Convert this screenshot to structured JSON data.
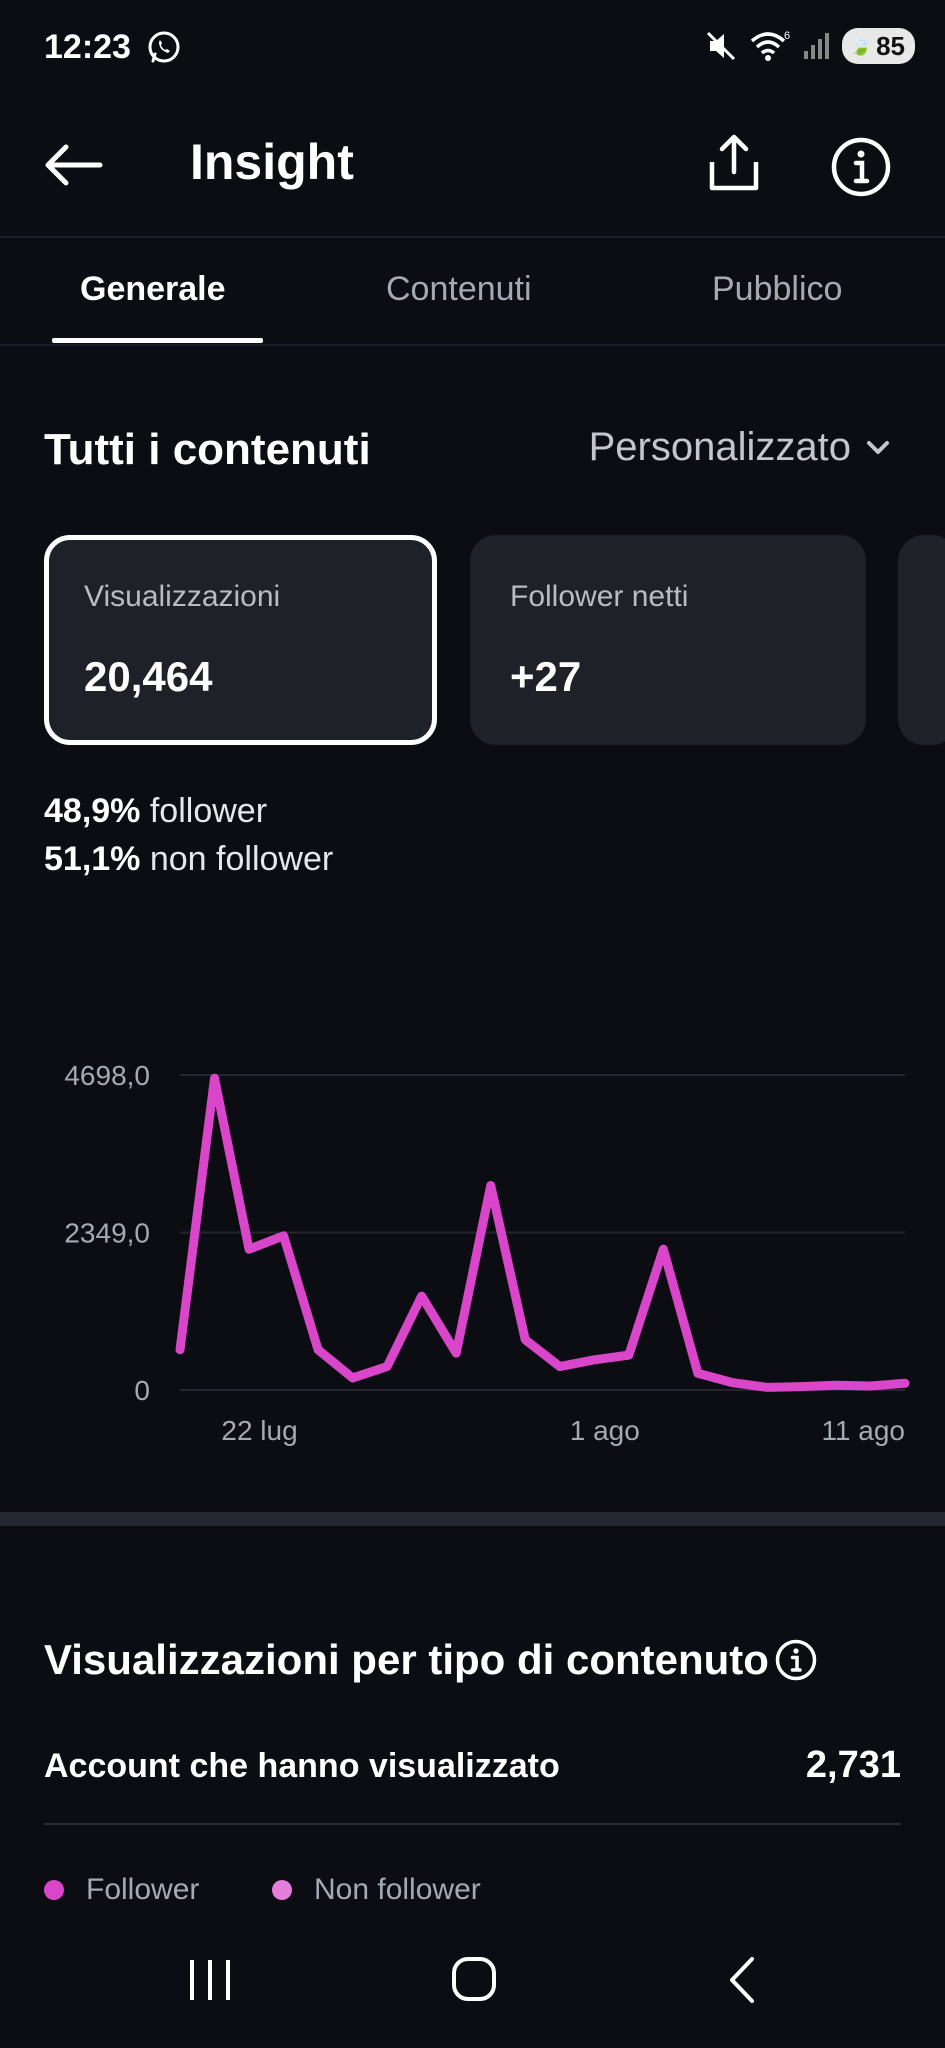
{
  "status_bar": {
    "time": "12:23",
    "battery": "85",
    "icons": [
      "whatsapp-icon",
      "mute-icon",
      "wifi-icon",
      "signal-icon",
      "battery-icon"
    ]
  },
  "header": {
    "title": "Insight",
    "icons": [
      "back-arrow-icon",
      "share-icon",
      "info-icon"
    ]
  },
  "tabs": [
    {
      "label": "Generale",
      "active": true
    },
    {
      "label": "Contenuti",
      "active": false
    },
    {
      "label": "Pubblico",
      "active": false
    }
  ],
  "section": {
    "title": "Tutti i contenuti",
    "range_label": "Personalizzato"
  },
  "cards": [
    {
      "label": "Visualizzazioni",
      "value": "20,464",
      "selected": true
    },
    {
      "label": "Follower netti",
      "value": "+27",
      "selected": false
    }
  ],
  "split": {
    "followers_pct": "48,9%",
    "followers_label": "follower",
    "non_followers_pct": "51,1%",
    "non_followers_label": "non follower"
  },
  "chart_data": {
    "type": "line",
    "color": "#d946c9",
    "y_ticks": [
      "4698,0",
      "2349,0",
      "0"
    ],
    "ylim": [
      0,
      4698
    ],
    "x_tick_labels": [
      "22 lug",
      "1 ago",
      "11 ago"
    ],
    "x_tick_dates": [
      "2024-07-22",
      "2024-08-01",
      "2024-08-11"
    ],
    "x": [
      "2024-07-21",
      "2024-07-22",
      "2024-07-23",
      "2024-07-24",
      "2024-07-25",
      "2024-07-26",
      "2024-07-27",
      "2024-07-28",
      "2024-07-29",
      "2024-07-30",
      "2024-07-31",
      "2024-08-01",
      "2024-08-02",
      "2024-08-03",
      "2024-08-04",
      "2024-08-05",
      "2024-08-06",
      "2024-08-07",
      "2024-08-08",
      "2024-08-09",
      "2024-08-10",
      "2024-08-11"
    ],
    "series": [
      {
        "values": [
          600,
          4650,
          2100,
          2300,
          600,
          180,
          350,
          1400,
          550,
          3050,
          750,
          350,
          450,
          520,
          2100,
          250,
          110,
          40,
          50,
          70,
          60,
          100
        ]
      }
    ],
    "grid": true
  },
  "content_type": {
    "title": "Visualizzazioni per tipo di contenuto",
    "accounts_label": "Account che hanno visualizzato",
    "accounts_value": "2,731",
    "legend": [
      {
        "label": "Follower",
        "color": "#d946c9"
      },
      {
        "label": "Non follower",
        "color": "#e47ddc"
      }
    ]
  },
  "nav_bar": {
    "icons": [
      "recents-icon",
      "home-icon",
      "back-icon"
    ]
  }
}
